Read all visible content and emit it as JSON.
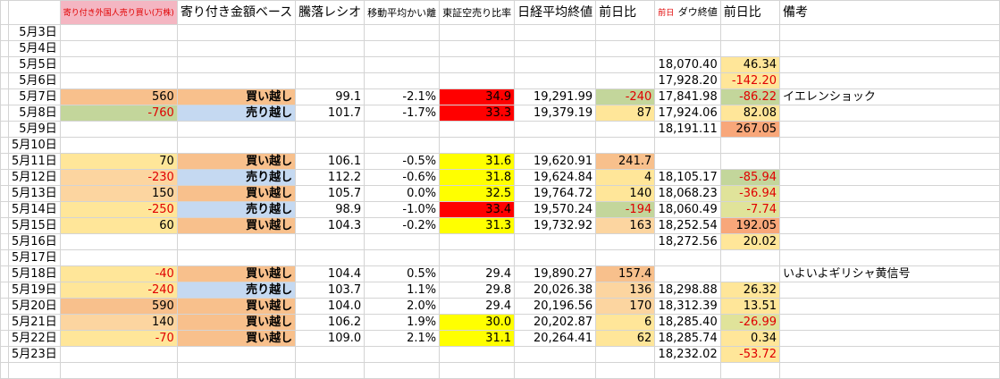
{
  "header": {
    "columns": [
      null,
      "寄り付き外国人売り買い(万株)",
      "寄り付き金額ベース",
      "騰落レシオ",
      "移動平均かい離",
      "東証空売り比率",
      "日経平均終値",
      "前日比",
      "ダウ終値",
      "前日比",
      "備考"
    ],
    "dow_prefix": "前日"
  },
  "table": {
    "rows": [
      [
        "5月3日",
        null,
        null,
        null,
        null,
        null,
        null,
        null,
        null,
        null,
        null
      ],
      [
        "5月4日",
        null,
        null,
        null,
        null,
        null,
        null,
        null,
        null,
        null,
        null
      ],
      [
        "5月5日",
        null,
        null,
        null,
        null,
        null,
        null,
        null,
        "18,070.40",
        "46.34",
        null
      ],
      [
        "5月6日",
        null,
        null,
        null,
        null,
        null,
        null,
        null,
        "17,928.20",
        "-142.20",
        null
      ],
      [
        "5月7日",
        "560",
        "買い越し",
        "99.1",
        "-2.1%",
        "34.9",
        "19,291.99",
        "-240",
        "17,841.98",
        "-86.22",
        "イエレンショック"
      ],
      [
        "5月8日",
        "-760",
        "売り越し",
        "101.7",
        "-1.7%",
        "33.3",
        "19,379.19",
        "87",
        "17,924.06",
        "82.08",
        null
      ],
      [
        "5月9日",
        null,
        null,
        null,
        null,
        null,
        null,
        null,
        "18,191.11",
        "267.05",
        null
      ],
      [
        "5月10日",
        null,
        null,
        null,
        null,
        null,
        null,
        null,
        null,
        null,
        null
      ],
      [
        "5月11日",
        "70",
        "買い越し",
        "106.1",
        "-0.5%",
        "31.6",
        "19,620.91",
        "241.7",
        null,
        null,
        null
      ],
      [
        "5月12日",
        "-230",
        "売り越し",
        "112.2",
        "-0.6%",
        "31.8",
        "19,624.84",
        "4",
        "18,105.17",
        "-85.94",
        null
      ],
      [
        "5月13日",
        "150",
        "買い越し",
        "105.7",
        "0.0%",
        "32.5",
        "19,764.72",
        "140",
        "18,068.23",
        "-36.94",
        null
      ],
      [
        "5月14日",
        "-250",
        "売り越し",
        "98.9",
        "-1.0%",
        "33.4",
        "19,570.24",
        "-194",
        "18,060.49",
        "-7.74",
        null
      ],
      [
        "5月15日",
        "60",
        "買い越し",
        "104.3",
        "-0.2%",
        "31.3",
        "19,732.92",
        "163",
        "18,252.54",
        "192.05",
        null
      ],
      [
        "5月16日",
        null,
        null,
        null,
        null,
        null,
        null,
        null,
        "18,272.56",
        "20.02",
        null
      ],
      [
        "5月17日",
        null,
        null,
        null,
        null,
        null,
        null,
        null,
        null,
        null,
        null
      ],
      [
        "5月18日",
        "-40",
        "買い越し",
        "104.4",
        "0.5%",
        "29.4",
        "19,890.27",
        "157.4",
        null,
        null,
        "いよいよギリシャ黄信号"
      ],
      [
        "5月19日",
        "-240",
        "売り越し",
        "103.7",
        "1.1%",
        "29.8",
        "20,026.38",
        "136",
        "18,298.88",
        "26.32",
        null
      ],
      [
        "5月20日",
        "590",
        "買い越し",
        "104.0",
        "2.0%",
        "29.4",
        "20,196.56",
        "170",
        "18,312.39",
        "13.51",
        null
      ],
      [
        "5月21日",
        "140",
        "買い越し",
        "106.2",
        "1.9%",
        "30.0",
        "20,202.87",
        "6",
        "18,285.40",
        "-26.99",
        null
      ],
      [
        "5月22日",
        "-70",
        "買い越し",
        "109.0",
        "2.1%",
        "31.1",
        "20,264.41",
        "62",
        "18,285.74",
        "0.34",
        null
      ],
      [
        "5月23日",
        null,
        null,
        null,
        null,
        null,
        null,
        null,
        "18,232.02",
        "-53.72",
        null
      ]
    ]
  }
}
